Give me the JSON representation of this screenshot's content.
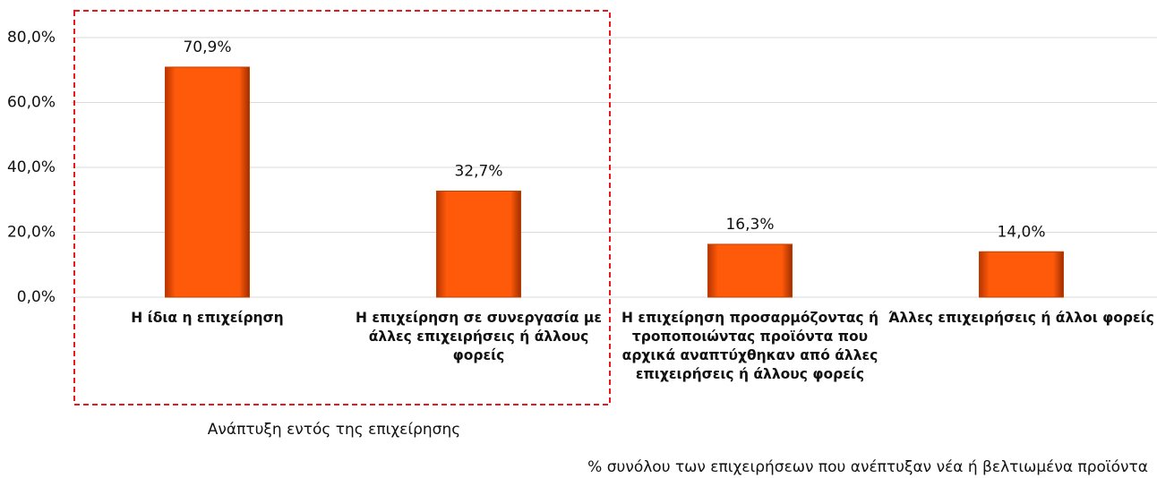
{
  "chart_data": {
    "type": "bar",
    "categories": [
      "Η ίδια η επιχείρηση",
      "Η επιχείρηση σε συνεργασία με άλλες επιχειρήσεις ή άλλους φορείς",
      "Η επιχείρηση προσαρμόζοντας ή τροποποιώντας προϊόντα που αρχικά αναπτύχθηκαν από άλλες επιχειρήσεις ή άλλους φορείς",
      "Άλλες επιχειρήσεις ή άλλοι φορείς"
    ],
    "values": [
      70.9,
      32.7,
      16.3,
      14.0
    ],
    "value_labels": [
      "70,9%",
      "32,7%",
      "16,3%",
      "14,0%"
    ],
    "color": "#ff5a0a",
    "ylim": [
      0,
      80
    ],
    "yticks": [
      {
        "value": 0,
        "label": "0,0%"
      },
      {
        "value": 20,
        "label": "20,0%"
      },
      {
        "value": 40,
        "label": "40,0%"
      },
      {
        "value": 60,
        "label": "60,0%"
      },
      {
        "value": 80,
        "label": "80,0%"
      }
    ],
    "grid": true,
    "annotations": [
      "Ανάπτυξη εντός της επιχείρησης",
      "% συνόλου των επιχειρήσεων που ανέπτυξαν νέα ή βελτιωμένα προϊόντα"
    ]
  }
}
